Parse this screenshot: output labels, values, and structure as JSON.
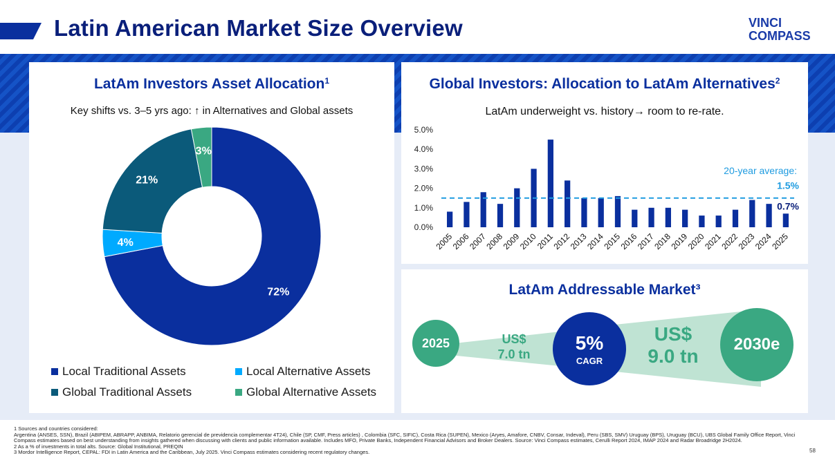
{
  "header": {
    "title": "Latin American Market Size Overview",
    "logo_line1": "VINCI",
    "logo_line2": "COMPASS"
  },
  "left_panel": {
    "title": "LatAm Investors Asset Allocation",
    "title_sup": "1",
    "subtitle": "Key shifts vs. 3–5 yrs ago: ↑ in Alternatives and Global assets"
  },
  "chart_data": [
    {
      "type": "pie",
      "title": "LatAm Investors Asset Allocation",
      "categories": [
        "Local Traditional Assets",
        "Local Alternative Assets",
        "Global Traditional Assets",
        "Global Alternative Assets"
      ],
      "values": [
        72,
        4,
        21,
        3
      ],
      "labels": [
        "72%",
        "4%",
        "21%",
        "3%"
      ],
      "colors": [
        "#0a2f9e",
        "#00aaff",
        "#0b5a7a",
        "#3aa882"
      ]
    },
    {
      "type": "bar",
      "title": "Global Investors: Allocation to LatAm Alternatives",
      "categories": [
        "2005",
        "2006",
        "2007",
        "2008",
        "2009",
        "2010",
        "2011",
        "2012",
        "2013",
        "2014",
        "2015",
        "2016",
        "2017",
        "2018",
        "2019",
        "2020",
        "2021",
        "2022",
        "2023",
        "2024",
        "2025"
      ],
      "values": [
        0.8,
        1.3,
        1.8,
        1.2,
        2.0,
        3.0,
        4.5,
        2.4,
        1.5,
        1.5,
        1.6,
        0.9,
        1.0,
        1.0,
        0.9,
        0.6,
        0.6,
        0.9,
        1.4,
        1.2,
        0.7
      ],
      "yticks": [
        "0.0%",
        "1.0%",
        "2.0%",
        "3.0%",
        "4.0%",
        "5.0%"
      ],
      "ylim": [
        0,
        5
      ],
      "average": 1.5,
      "color": "#0a2f9e"
    }
  ],
  "right_top": {
    "title": "Global Investors: Allocation to LatAm Alternatives",
    "title_sup": "2",
    "subtitle": "LatAm underweight vs. history→ room to re-rate.",
    "avg_label": "20-year average:",
    "avg_value": "1.5%",
    "last_value": "0.7%"
  },
  "right_bottom": {
    "title": "LatAm Addressable Market³",
    "start_year": "2025",
    "start_value_line1": "US$",
    "start_value_line2": "7.0 tn",
    "cagr_value": "5%",
    "cagr_label": "CAGR",
    "end_value_line1": "US$",
    "end_value_line2": "9.0 tn",
    "end_year": "2030e"
  },
  "footnotes": [
    "1 Sources and countries considered:",
    "Argentina (ANSES, SSN), Brazil (ABIPEM, ABRAPP, ANBIMA, Relatorio gerencial de previdencia complementar 4T24), Chile (SP, CMF, Press articles) , Colombia (SFC, SIFIC), Costa Rica (SUPEN), Mexico (Aryes, Amafore, CNBV, Consar, Indeval), Peru (SBS, SMV) Uruguay (BPS), Uruguay (BCU), UBS Global Family Office Report, Vinci Compass estimates based on best understanding from insights gathered when discussing with clients and public information available. Includes MFO, Private Banks, Independent Financial Advisors and Broker Dealers. Source: Vinci Compass estimates, Cerulli Report 2024, IMAP 2024 and Radar Broadridge 2H2024.",
    "2 As a % of investments in total alts. Source: Global Institutional, PREQIN",
    "3 Mordor Intelligence Report, CEPAL: FDI in Latin America and the Caribbean, July 2025. Vinci Compass estimates considering recent regulatory changes."
  ],
  "page_number": "58"
}
